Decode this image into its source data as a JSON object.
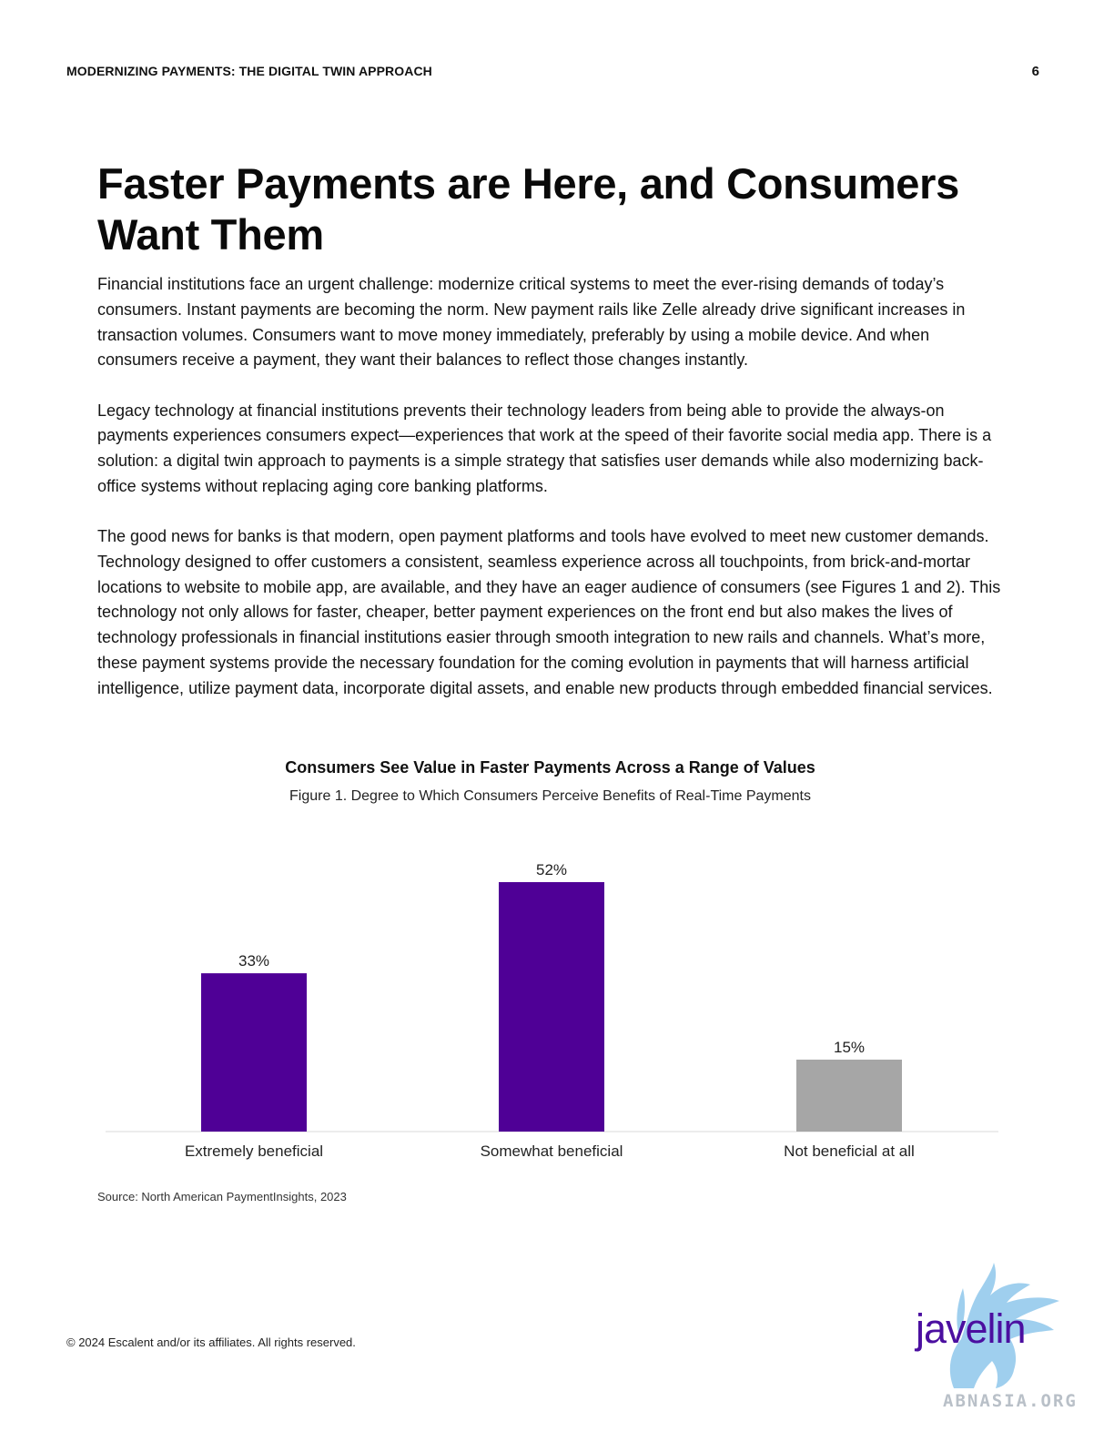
{
  "header": {
    "doc_title": "MODERNIZING PAYMENTS: THE DIGITAL TWIN APPROACH",
    "page_number": "6"
  },
  "title": "Faster Payments are Here, and Consumers Want Them",
  "paragraphs": [
    "Financial institutions face an urgent challenge: modernize critical systems to meet the ever-rising demands of today’s consumers. Instant payments are becoming the norm. New payment rails like Zelle already drive significant increases in transaction volumes. Consumers want to move money immediately, preferably by using a mobile device. And when consumers receive a payment, they want their balances to reflect those changes instantly.",
    "Legacy technology at financial institutions prevents their technology leaders from being able to provide the always-on payments experiences consumers expect—experiences that work at the speed of their favorite social media app. There is a solution: a digital twin approach to payments is a simple strategy that satisfies user demands while also modernizing back-office systems without replacing aging core banking platforms.",
    "The good news for banks is that modern, open payment platforms and tools have evolved to meet new customer demands. Technology designed to offer customers a consistent, seamless experience across all touchpoints, from brick-and-mortar locations to website to mobile app, are available, and they have an eager audience of consumers (see Figures 1 and 2). This technology not only allows for faster, cheaper, better payment experiences on the front end but also makes the lives of technology professionals in financial institutions easier through smooth integration to new rails and channels. What’s more, these payment systems provide the necessary foundation for the coming evolution in payments that will harness artificial intelligence, utilize payment data, incorporate digital assets, and enable new products through embedded financial services."
  ],
  "chart_data": {
    "type": "bar",
    "title": "Consumers See Value in Faster Payments Across a Range of Values",
    "subtitle": "Figure 1. Degree to Which Consumers Perceive Benefits of Real-Time Payments",
    "categories": [
      "Extremely beneficial",
      "Somewhat beneficial",
      "Not beneficial at all"
    ],
    "values": [
      33,
      52,
      15
    ],
    "data_labels": [
      "33%",
      "52%",
      "15%"
    ],
    "colors": [
      "#4f0096",
      "#4f0096",
      "#a6a6a6"
    ],
    "ylim": [
      0,
      52
    ],
    "grid": false,
    "legend": "none"
  },
  "source": "Source: North American PaymentInsights, 2023",
  "footer": {
    "copyright": "© 2024 Escalent and/or its affiliates. All rights reserved."
  },
  "logo": {
    "text": "javelin",
    "text_color": "#4b0fa0",
    "mark_color": "#7fbfe8"
  },
  "watermark": "ABNASIA.ORG"
}
